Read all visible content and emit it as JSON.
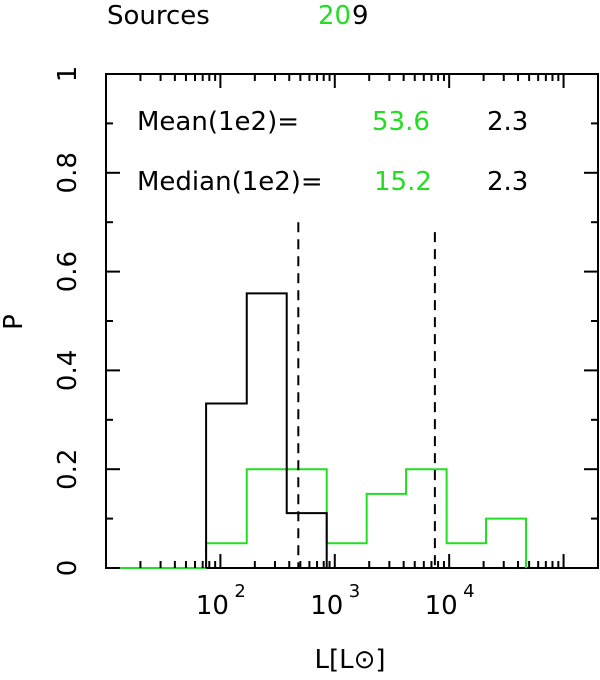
{
  "header": {
    "label": "Sources",
    "count_green": "20",
    "count_black": "9"
  },
  "stats": {
    "mean_label": "Mean(1e2)=",
    "mean_green": "53.6",
    "mean_black": "2.3",
    "median_label": "Median(1e2)=",
    "median_green": "15.2",
    "median_black": "2.3"
  },
  "colors": {
    "green": "#22dd22",
    "black": "#000000"
  },
  "chart_data": {
    "type": "histogram",
    "xlabel": "L[L⊙]",
    "ylabel": "P",
    "x_scale": "log",
    "xlim": [
      10,
      200000
    ],
    "ylim": [
      0,
      1
    ],
    "x_ticks": [
      {
        "value": 100,
        "label": "10",
        "exp": "2"
      },
      {
        "value": 1000,
        "label": "10",
        "exp": "3"
      },
      {
        "value": 10000,
        "label": "10",
        "exp": "4"
      }
    ],
    "y_ticks": [
      "0",
      "0.2",
      "0.4",
      "0.6",
      "0.8",
      "1"
    ],
    "series": [
      {
        "color": "black",
        "edges": [
          75,
          170,
          380,
          850
        ],
        "values": [
          0.333,
          0.556,
          0.111
        ]
      },
      {
        "color": "green",
        "edges": [
          75,
          170,
          380,
          850,
          1900,
          4200,
          9500,
          21000,
          47000
        ],
        "values": [
          0.05,
          0.2,
          0.2,
          0.05,
          0.15,
          0.2,
          0.05,
          0.1
        ]
      }
    ],
    "vlines": [
      {
        "x": 480,
        "top": 0.7,
        "style": "dashed"
      },
      {
        "x": 7500,
        "top": 0.68,
        "style": "dashed"
      }
    ]
  }
}
